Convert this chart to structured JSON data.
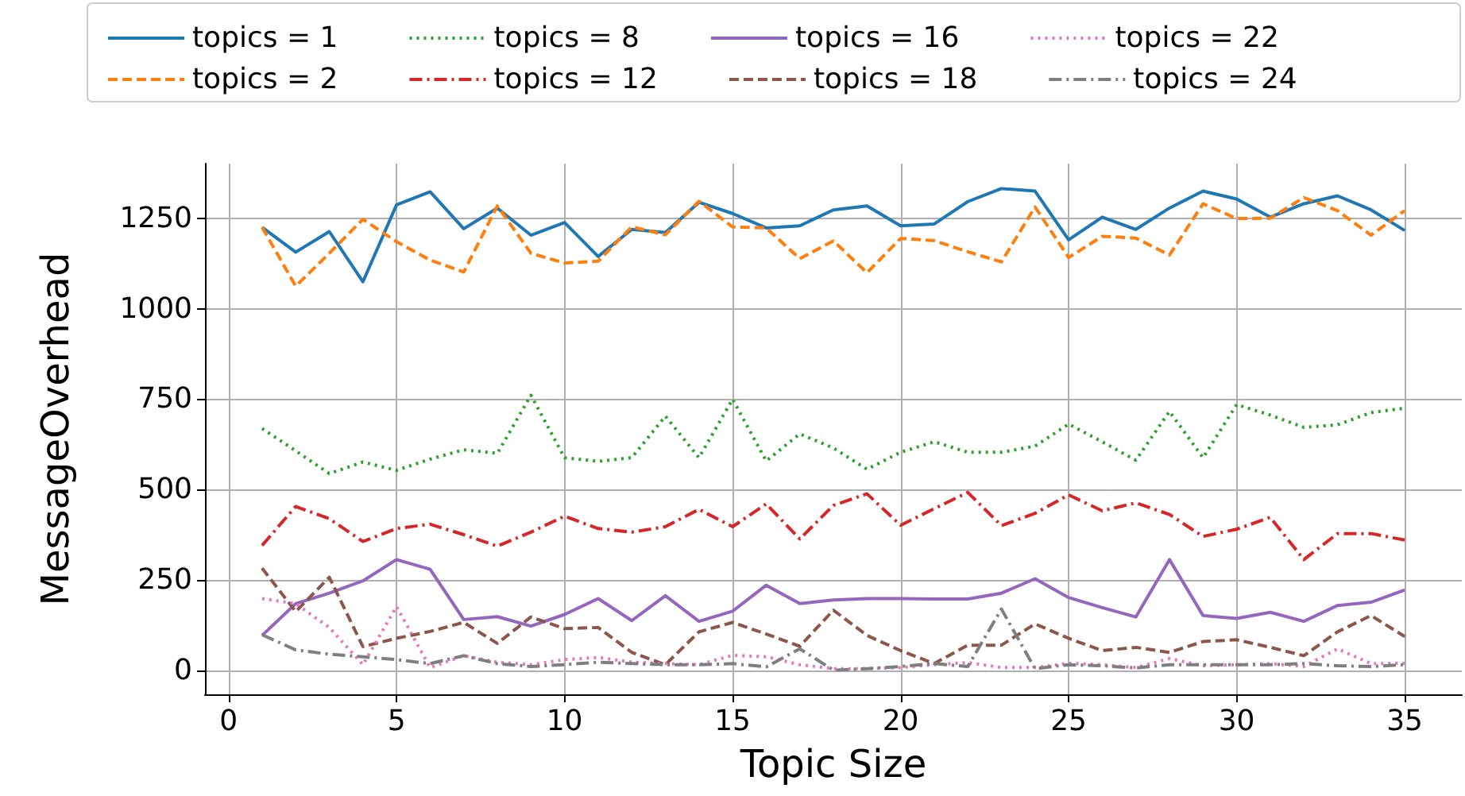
{
  "chart_data": {
    "type": "line",
    "xlabel": "Topic Size",
    "ylabel": "MessageOverhead",
    "x": [
      1,
      2,
      3,
      4,
      5,
      6,
      7,
      8,
      9,
      10,
      11,
      12,
      13,
      14,
      15,
      16,
      17,
      18,
      19,
      20,
      21,
      22,
      23,
      24,
      25,
      26,
      27,
      28,
      29,
      30,
      31,
      32,
      33,
      34,
      35
    ],
    "xlim": [
      -0.7,
      36.7
    ],
    "xticks": [
      0,
      5,
      10,
      15,
      20,
      25,
      30,
      35
    ],
    "ylim": [
      -67,
      1402
    ],
    "yticks": [
      0,
      250,
      500,
      750,
      1000,
      1250
    ],
    "grid": true,
    "legend": "top",
    "marker": "none",
    "series": [
      {
        "name": "topics = 1",
        "color": "#1f77b4",
        "line_style": "solid",
        "values": [
          1226,
          1157,
          1214,
          1075,
          1288,
          1324,
          1222,
          1279,
          1204,
          1239,
          1145,
          1220,
          1211,
          1295,
          1264,
          1224,
          1230,
          1274,
          1285,
          1230,
          1235,
          1297,
          1333,
          1326,
          1191,
          1254,
          1220,
          1279,
          1326,
          1304,
          1254,
          1291,
          1313,
          1274,
          1217
        ]
      },
      {
        "name": "topics = 2",
        "color": "#ff7f0e",
        "line_style": "dashed",
        "values": [
          1226,
          1063,
          1154,
          1248,
          1186,
          1135,
          1102,
          1285,
          1154,
          1127,
          1132,
          1227,
          1205,
          1298,
          1227,
          1224,
          1139,
          1188,
          1100,
          1195,
          1189,
          1158,
          1130,
          1282,
          1142,
          1201,
          1196,
          1149,
          1291,
          1250,
          1251,
          1308,
          1272,
          1204,
          1272
        ]
      },
      {
        "name": "topics = 8",
        "color": "#2ca02c",
        "line_style": "dotted",
        "values": [
          669,
          607,
          544,
          576,
          553,
          584,
          610,
          600,
          761,
          588,
          578,
          588,
          703,
          588,
          750,
          579,
          654,
          615,
          556,
          603,
          632,
          603,
          603,
          620,
          681,
          632,
          581,
          716,
          588,
          735,
          706,
          672,
          679,
          713,
          725
        ]
      },
      {
        "name": "topics = 12",
        "color": "#d62728",
        "line_style": "dashdot",
        "values": [
          345,
          453,
          419,
          356,
          392,
          404,
          375,
          343,
          382,
          426,
          392,
          382,
          397,
          445,
          397,
          460,
          363,
          456,
          488,
          401,
          447,
          492,
          400,
          434,
          485,
          441,
          463,
          431,
          370,
          390,
          423,
          306,
          378,
          378,
          360
        ]
      },
      {
        "name": "topics = 16",
        "color": "#9467bd",
        "line_style": "solid",
        "values": [
          96,
          184,
          213,
          247,
          306,
          279,
          140,
          148,
          122,
          154,
          198,
          137,
          206,
          135,
          163,
          235,
          184,
          194,
          198,
          198,
          197,
          197,
          213,
          253,
          201,
          173,
          147,
          306,
          151,
          143,
          160,
          135,
          179,
          188,
          222
        ]
      },
      {
        "name": "topics = 18",
        "color": "#8c564b",
        "line_style": "dashed",
        "values": [
          282,
          162,
          257,
          65,
          88,
          107,
          132,
          74,
          147,
          115,
          118,
          49,
          15,
          106,
          132,
          100,
          66,
          166,
          96,
          54,
          18,
          69,
          69,
          128,
          88,
          54,
          63,
          49,
          79,
          84,
          63,
          40,
          106,
          151,
          93
        ]
      },
      {
        "name": "topics = 22",
        "color": "#e377c2",
        "line_style": "dotted",
        "values": [
          198,
          184,
          118,
          15,
          176,
          7,
          40,
          22,
          15,
          29,
          35,
          22,
          18,
          15,
          41,
          37,
          15,
          4,
          4,
          7,
          15,
          21,
          7,
          7,
          19,
          15,
          7,
          32,
          12,
          15,
          18,
          10,
          59,
          18,
          19
        ]
      },
      {
        "name": "topics = 24",
        "color": "#7f7f7f",
        "line_style": "dashdot",
        "values": [
          98,
          56,
          44,
          37,
          29,
          18,
          40,
          18,
          10,
          15,
          22,
          18,
          15,
          15,
          18,
          9,
          59,
          0,
          4,
          10,
          18,
          10,
          169,
          4,
          15,
          12,
          6,
          15,
          15,
          15,
          15,
          18,
          12,
          10,
          15
        ]
      }
    ]
  }
}
